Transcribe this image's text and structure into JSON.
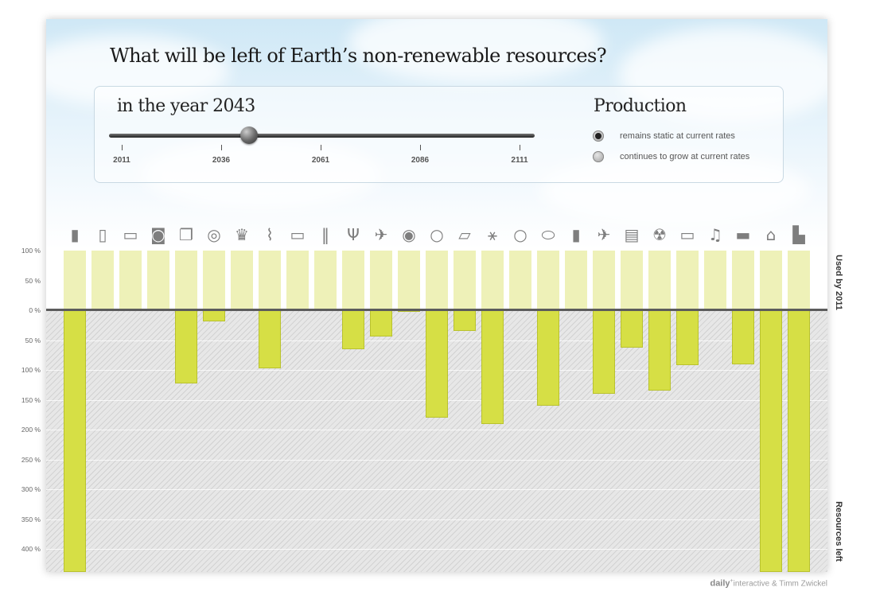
{
  "header": {
    "title": "What will be left of Earth’s non-renewable resources?"
  },
  "slider": {
    "year_label": "in the year 2043",
    "selected_year": 2043,
    "ticks": [
      "2011",
      "2036",
      "2061",
      "2086",
      "2111"
    ]
  },
  "production": {
    "title": "Production",
    "options": [
      {
        "label": "remains static at current rates",
        "selected": true
      },
      {
        "label": "continues to grow at current rates",
        "selected": false
      }
    ]
  },
  "side_labels": {
    "top": "Used by 2011",
    "bottom": "Resources left"
  },
  "credit": {
    "brand": "daily",
    "rest": "interactive & Timm Zwickel"
  },
  "icons": [
    "paint-bucket-icon",
    "battery-icon",
    "monitor-icon",
    "bucket-icon",
    "documents-icon",
    "cable-coil-icon",
    "crown-icon",
    "fork-spoon-icon",
    "monitor-icon",
    "pencils-icon",
    "cutlery-icon",
    "airplane-icon",
    "coin-icon",
    "ring-icon",
    "brick-icon",
    "wind-turbine-icon",
    "ring-icon",
    "capsule-icon",
    "paint-bucket-icon",
    "airplane-icon",
    "radio-icon",
    "radiation-icon",
    "monitor-icon",
    "saxophone-icon",
    "car-icon",
    "house-icon",
    "factory-icon"
  ],
  "colors": {
    "used_bar": "#eef1b8",
    "left_bar": "#d6df45",
    "zero_line": "#5c5c5c",
    "hatch": "#d2d2d2"
  },
  "chart_data": {
    "type": "bar",
    "categories_count": 27,
    "series": [
      {
        "name": "Used by 2011",
        "values": [
          100,
          100,
          100,
          100,
          100,
          100,
          100,
          100,
          100,
          100,
          100,
          100,
          100,
          100,
          100,
          100,
          100,
          100,
          100,
          100,
          100,
          100,
          100,
          100,
          100,
          100,
          100
        ]
      },
      {
        "name": "Resources left",
        "values": [
          440,
          0,
          0,
          0,
          122,
          18,
          0,
          97,
          0,
          0,
          65,
          44,
          2,
          180,
          35,
          190,
          0,
          160,
          0,
          140,
          62,
          135,
          92,
          0,
          90,
          440,
          440
        ]
      }
    ],
    "yticks_used": [
      "100 %",
      "50 %",
      "0 %"
    ],
    "yticks_left": [
      "50 %",
      "100 %",
      "150 %",
      "200 %",
      "250 %",
      "300 %",
      "350 %",
      "400 %"
    ],
    "ylim_used": [
      0,
      100
    ],
    "ylim_left": [
      0,
      440
    ]
  }
}
